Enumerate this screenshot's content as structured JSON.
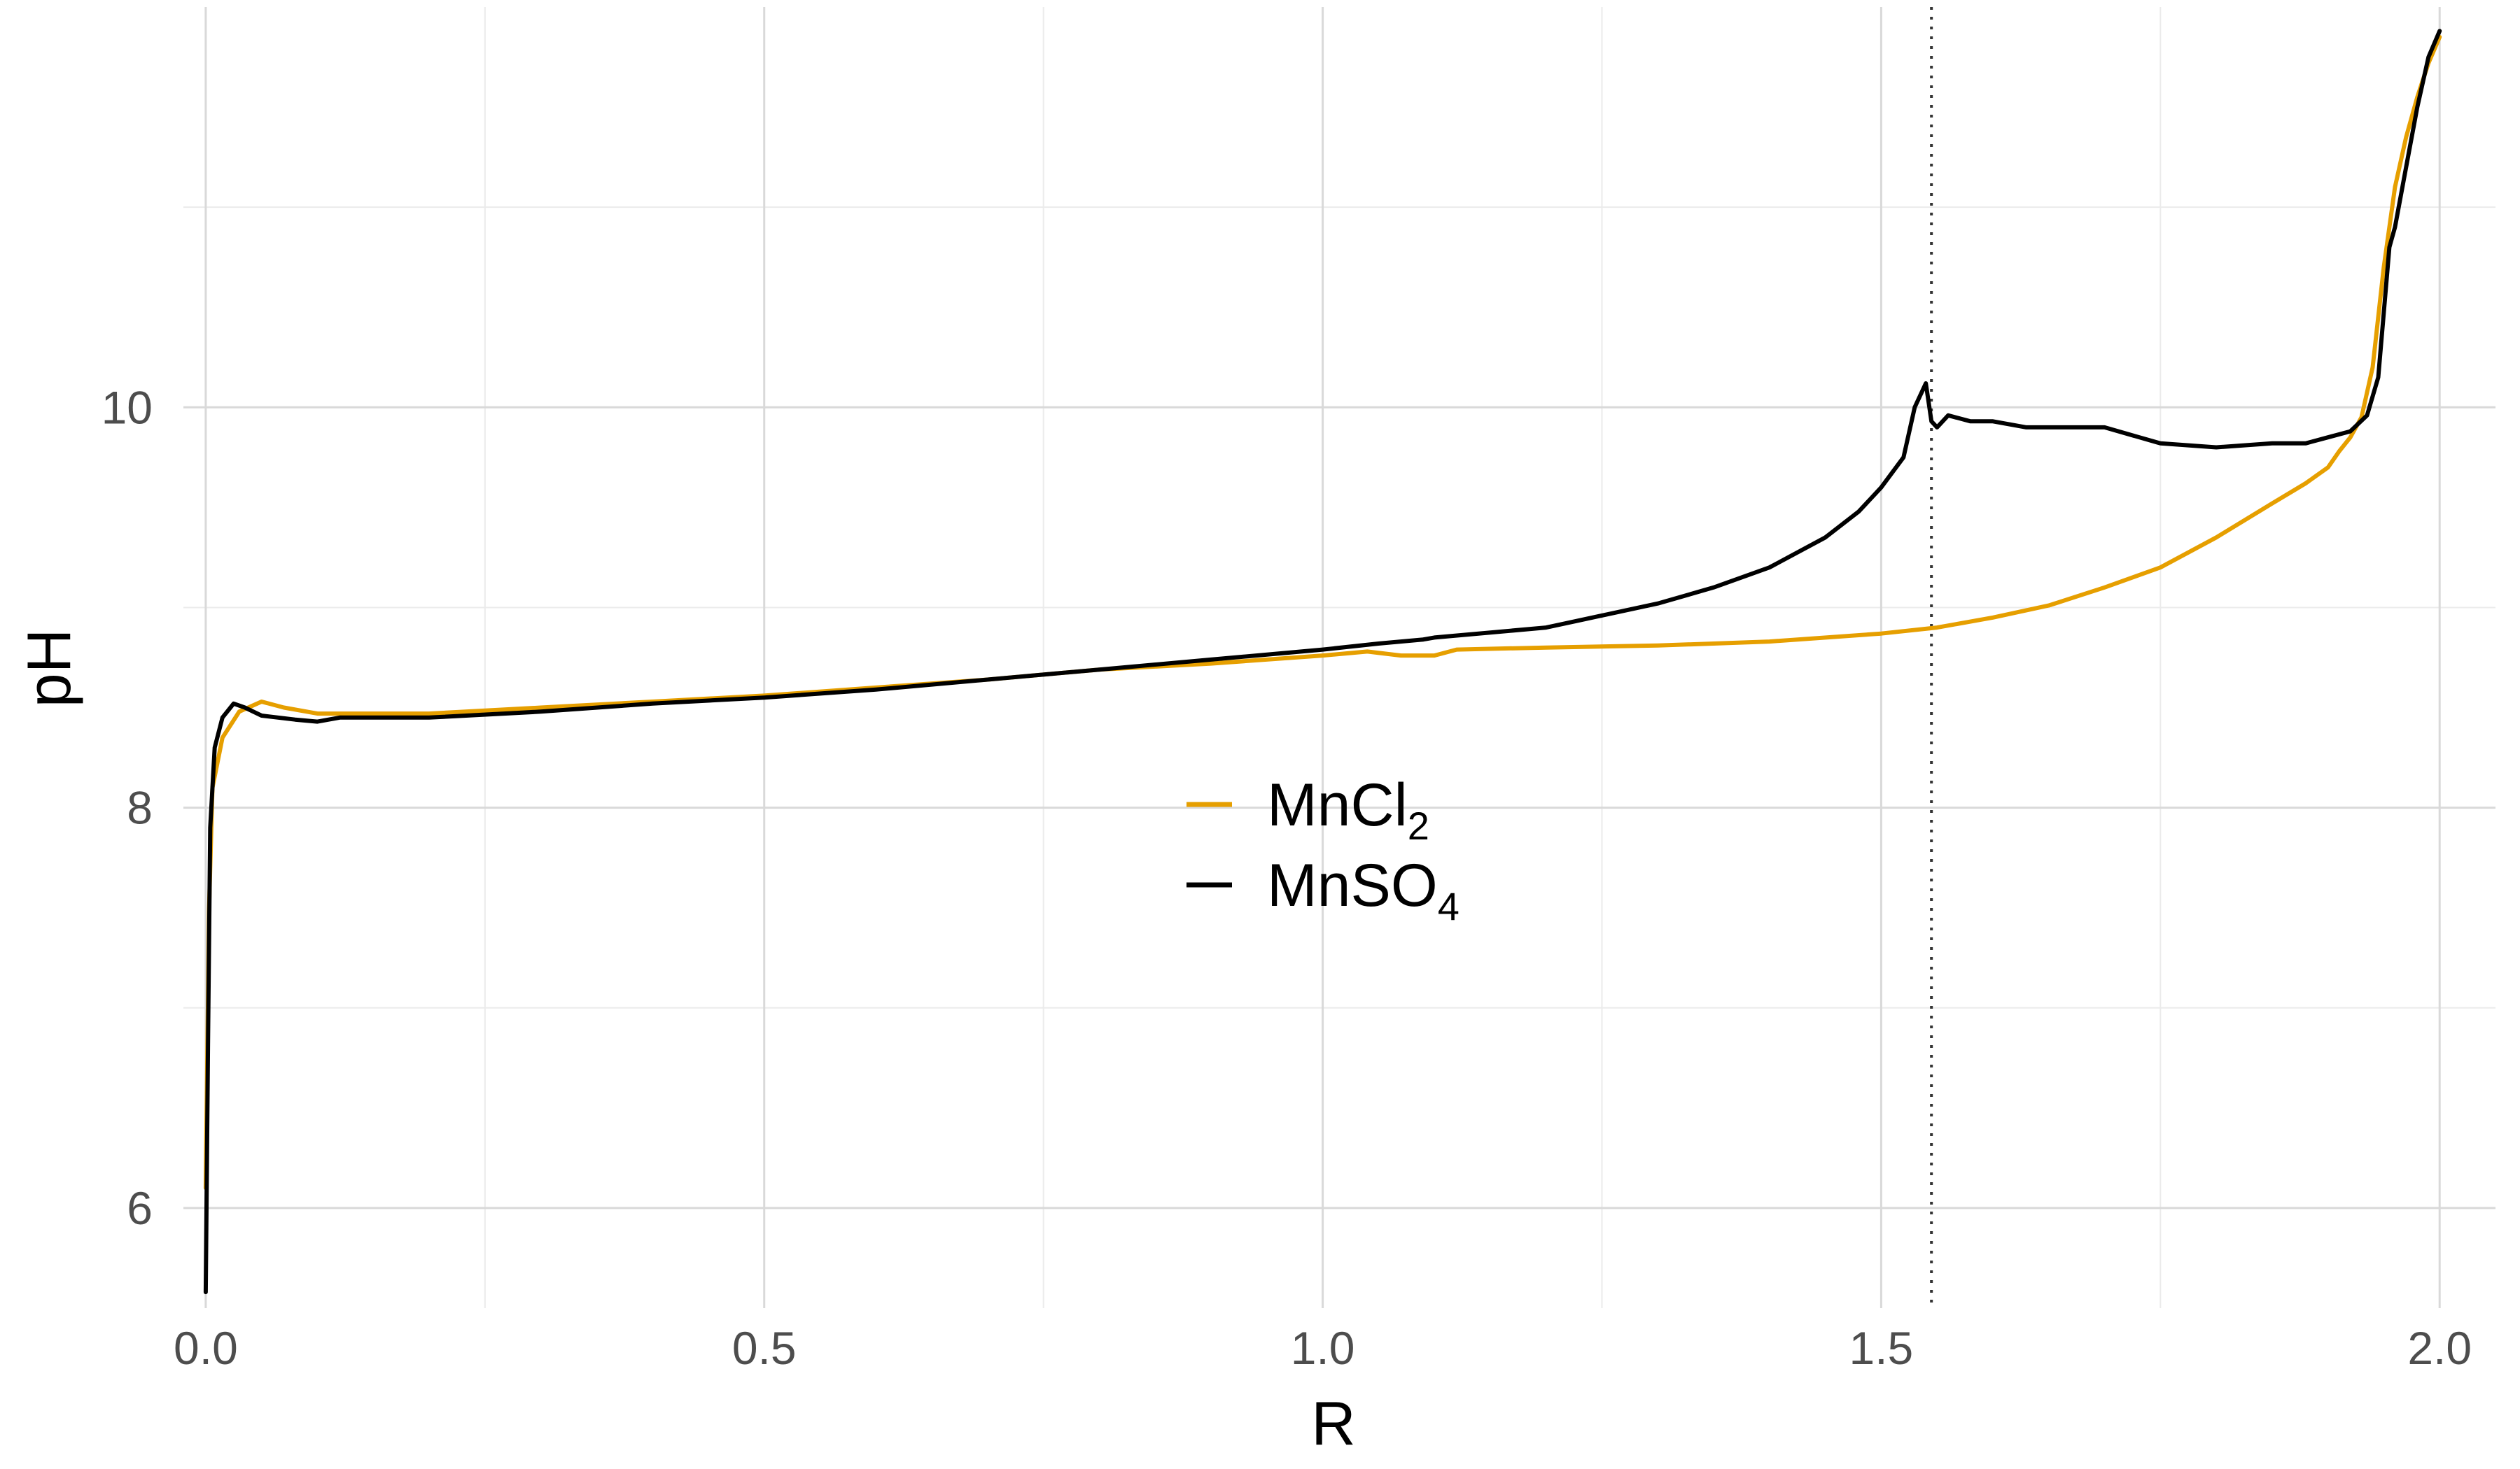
{
  "chart_data": {
    "type": "line",
    "xlabel": "R",
    "ylabel": "pH",
    "xlim": [
      -0.02,
      2.05
    ],
    "ylim": [
      5.5,
      12.0
    ],
    "x_ticks": [
      "0.0",
      "0.5",
      "1.0",
      "1.5",
      "2.0"
    ],
    "x_tick_values": [
      0.0,
      0.5,
      1.0,
      1.5,
      2.0
    ],
    "y_ticks": [
      "6",
      "8",
      "10"
    ],
    "y_tick_values": [
      6,
      8,
      10
    ],
    "grid": true,
    "legend_position": "center",
    "reference_line": {
      "x": 1.545,
      "style": "dotted"
    },
    "colors": {
      "MnCl2": "#E69F00",
      "MnSO4": "#000000"
    },
    "series": [
      {
        "name": "MnCl2",
        "label_main": "MnCl",
        "label_sub": "2",
        "color": "#E69F00",
        "points": [
          [
            0.0,
            6.1
          ],
          [
            0.003,
            7.5
          ],
          [
            0.006,
            8.1
          ],
          [
            0.015,
            8.35
          ],
          [
            0.03,
            8.48
          ],
          [
            0.05,
            8.53
          ],
          [
            0.07,
            8.5
          ],
          [
            0.1,
            8.47
          ],
          [
            0.2,
            8.47
          ],
          [
            0.3,
            8.5
          ],
          [
            0.4,
            8.53
          ],
          [
            0.5,
            8.56
          ],
          [
            0.6,
            8.6
          ],
          [
            0.7,
            8.64
          ],
          [
            0.8,
            8.69
          ],
          [
            0.9,
            8.72
          ],
          [
            1.0,
            8.76
          ],
          [
            1.04,
            8.78
          ],
          [
            1.07,
            8.76
          ],
          [
            1.1,
            8.76
          ],
          [
            1.12,
            8.79
          ],
          [
            1.2,
            8.8
          ],
          [
            1.3,
            8.81
          ],
          [
            1.4,
            8.83
          ],
          [
            1.5,
            8.87
          ],
          [
            1.55,
            8.9
          ],
          [
            1.6,
            8.95
          ],
          [
            1.65,
            9.01
          ],
          [
            1.7,
            9.1
          ],
          [
            1.75,
            9.2
          ],
          [
            1.8,
            9.35
          ],
          [
            1.85,
            9.52
          ],
          [
            1.88,
            9.62
          ],
          [
            1.9,
            9.7
          ],
          [
            1.91,
            9.78
          ],
          [
            1.92,
            9.85
          ],
          [
            1.93,
            9.95
          ],
          [
            1.94,
            10.2
          ],
          [
            1.95,
            10.7
          ],
          [
            1.96,
            11.1
          ],
          [
            1.97,
            11.35
          ],
          [
            1.98,
            11.55
          ],
          [
            1.99,
            11.72
          ],
          [
            2.0,
            11.85
          ]
        ]
      },
      {
        "name": "MnSO4",
        "label_main": "MnSO",
        "label_sub": "4",
        "color": "#000000",
        "points": [
          [
            0.0,
            5.58
          ],
          [
            0.002,
            6.8
          ],
          [
            0.004,
            7.9
          ],
          [
            0.008,
            8.3
          ],
          [
            0.015,
            8.45
          ],
          [
            0.025,
            8.52
          ],
          [
            0.035,
            8.5
          ],
          [
            0.05,
            8.46
          ],
          [
            0.08,
            8.44
          ],
          [
            0.1,
            8.43
          ],
          [
            0.12,
            8.45
          ],
          [
            0.2,
            8.45
          ],
          [
            0.3,
            8.48
          ],
          [
            0.4,
            8.52
          ],
          [
            0.5,
            8.55
          ],
          [
            0.6,
            8.59
          ],
          [
            0.7,
            8.64
          ],
          [
            0.8,
            8.69
          ],
          [
            0.9,
            8.74
          ],
          [
            1.0,
            8.79
          ],
          [
            1.05,
            8.82
          ],
          [
            1.09,
            8.84
          ],
          [
            1.1,
            8.85
          ],
          [
            1.2,
            8.9
          ],
          [
            1.3,
            9.02
          ],
          [
            1.35,
            9.1
          ],
          [
            1.4,
            9.2
          ],
          [
            1.45,
            9.35
          ],
          [
            1.48,
            9.48
          ],
          [
            1.5,
            9.6
          ],
          [
            1.52,
            9.75
          ],
          [
            1.53,
            10.0
          ],
          [
            1.54,
            10.12
          ],
          [
            1.545,
            9.93
          ],
          [
            1.55,
            9.9
          ],
          [
            1.56,
            9.96
          ],
          [
            1.58,
            9.93
          ],
          [
            1.6,
            9.93
          ],
          [
            1.63,
            9.9
          ],
          [
            1.66,
            9.9
          ],
          [
            1.7,
            9.9
          ],
          [
            1.75,
            9.82
          ],
          [
            1.8,
            9.8
          ],
          [
            1.85,
            9.82
          ],
          [
            1.88,
            9.82
          ],
          [
            1.9,
            9.85
          ],
          [
            1.92,
            9.88
          ],
          [
            1.935,
            9.96
          ],
          [
            1.945,
            10.15
          ],
          [
            1.955,
            10.8
          ],
          [
            1.96,
            10.9
          ],
          [
            1.97,
            11.2
          ],
          [
            1.98,
            11.5
          ],
          [
            1.99,
            11.75
          ],
          [
            2.0,
            11.88
          ]
        ]
      }
    ]
  }
}
